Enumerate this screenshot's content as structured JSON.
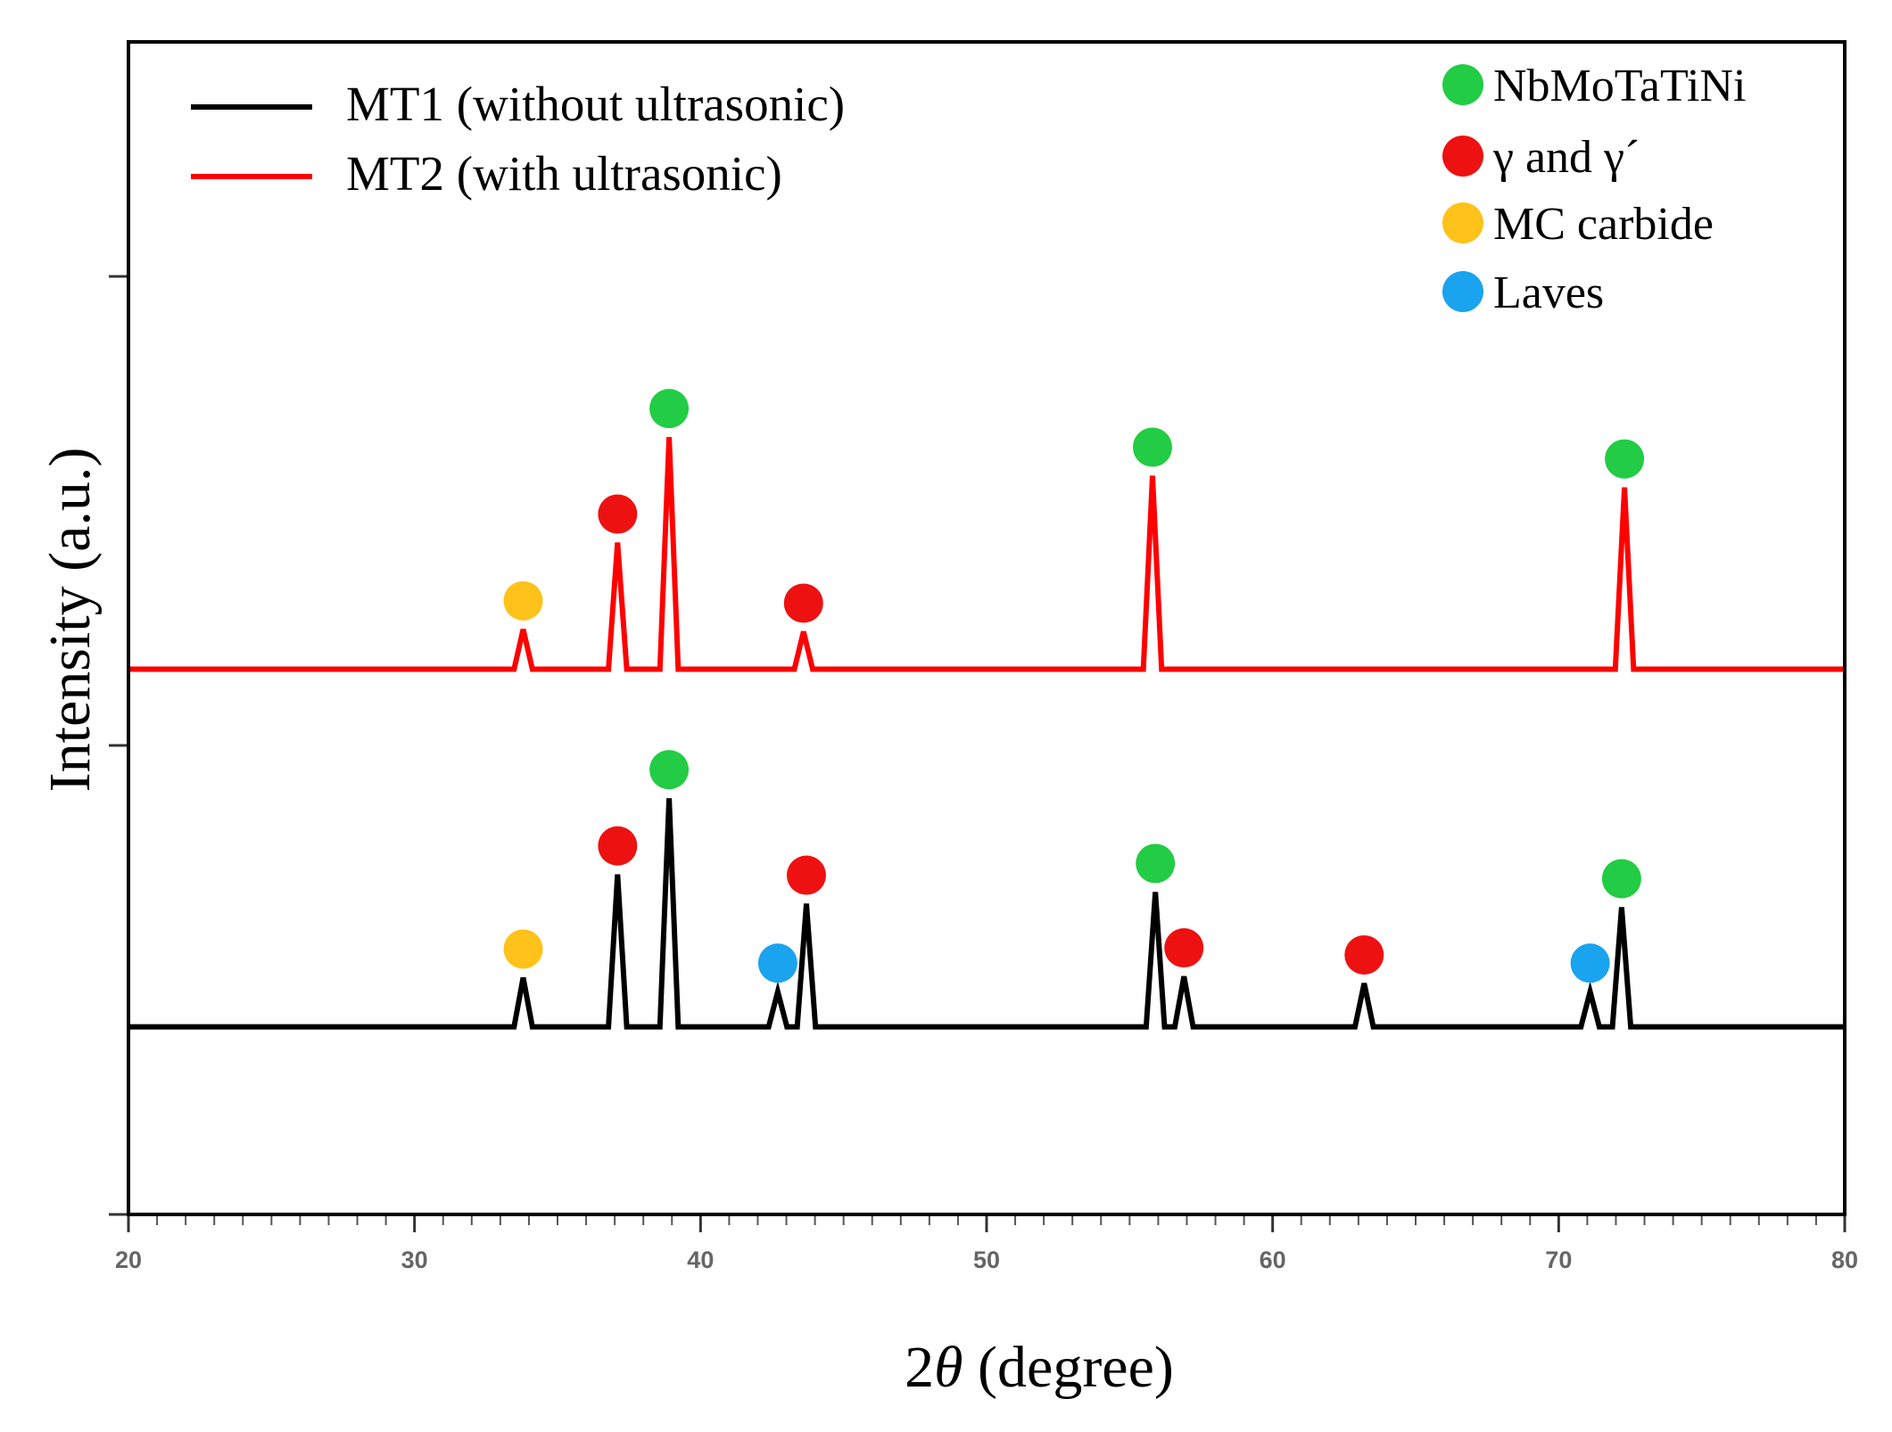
{
  "chart_data": {
    "type": "line",
    "title": "",
    "xlabel_prefix": "2",
    "xlabel_symbol": "θ",
    "xlabel_suffix": " (degree)",
    "ylabel": "Intensity (a.u.)",
    "xlim": [
      20,
      80
    ],
    "ylim": [
      0,
      100
    ],
    "x_ticks": [
      20,
      30,
      40,
      50,
      60,
      70,
      80
    ],
    "x_tick_labels": [
      "20",
      "30",
      "40",
      "50",
      "60",
      "70",
      "80"
    ],
    "x_minor_step": 1,
    "y_ticks": [
      0,
      40,
      80
    ],
    "grid": false,
    "series": [
      {
        "name": "MT1 (without ultrasonic)",
        "color": "#000000",
        "baseline": 16,
        "peaks": [
          {
            "x": 33.8,
            "height": 4.2
          },
          {
            "x": 37.1,
            "height": 13
          },
          {
            "x": 38.9,
            "height": 19.5
          },
          {
            "x": 42.7,
            "height": 3
          },
          {
            "x": 43.7,
            "height": 10.5
          },
          {
            "x": 55.9,
            "height": 11.5
          },
          {
            "x": 56.9,
            "height": 4.3
          },
          {
            "x": 63.2,
            "height": 3.7
          },
          {
            "x": 71.1,
            "height": 3
          },
          {
            "x": 72.2,
            "height": 10.2
          }
        ]
      },
      {
        "name": "MT2 (with ultrasonic)",
        "color": "#ff0000",
        "baseline": 46.5,
        "peaks": [
          {
            "x": 33.8,
            "height": 3.4
          },
          {
            "x": 37.1,
            "height": 10.8
          },
          {
            "x": 38.9,
            "height": 19.8
          },
          {
            "x": 43.6,
            "height": 3.2
          },
          {
            "x": 55.8,
            "height": 16.5
          },
          {
            "x": 72.3,
            "height": 15.5
          }
        ]
      }
    ],
    "phase_legend": [
      {
        "label": "NbMoTaTiNi",
        "color": "#22cc44"
      },
      {
        "label": "γ and γ´",
        "color": "#ee1111"
      },
      {
        "label": "MC carbide",
        "color": "#ffc21a"
      },
      {
        "label": "Laves",
        "color": "#1aa3ee"
      }
    ],
    "phase_markers": [
      {
        "series": 0,
        "x": 33.8,
        "phase": 2
      },
      {
        "series": 0,
        "x": 37.1,
        "phase": 1
      },
      {
        "series": 0,
        "x": 38.9,
        "phase": 0
      },
      {
        "series": 0,
        "x": 42.7,
        "phase": 3
      },
      {
        "series": 0,
        "x": 43.7,
        "phase": 1
      },
      {
        "series": 0,
        "x": 55.9,
        "phase": 0
      },
      {
        "series": 0,
        "x": 56.9,
        "phase": 1
      },
      {
        "series": 0,
        "x": 63.2,
        "phase": 1
      },
      {
        "series": 0,
        "x": 71.1,
        "phase": 3
      },
      {
        "series": 0,
        "x": 72.2,
        "phase": 0
      },
      {
        "series": 1,
        "x": 33.8,
        "phase": 2
      },
      {
        "series": 1,
        "x": 37.1,
        "phase": 1
      },
      {
        "series": 1,
        "x": 38.9,
        "phase": 0
      },
      {
        "series": 1,
        "x": 43.6,
        "phase": 1
      },
      {
        "series": 1,
        "x": 55.8,
        "phase": 0
      },
      {
        "series": 1,
        "x": 72.3,
        "phase": 0
      }
    ],
    "legend_position": "top-left",
    "phase_legend_position": "top-right"
  }
}
